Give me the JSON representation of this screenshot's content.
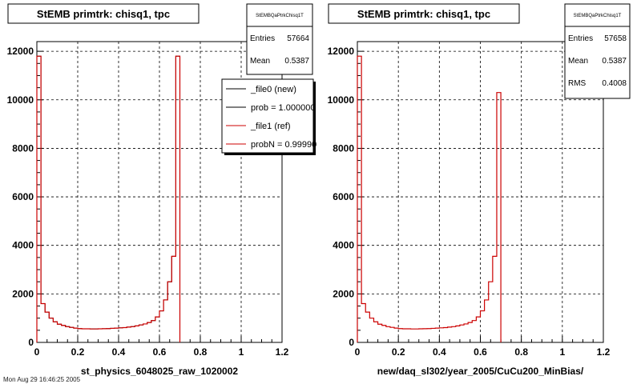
{
  "chart_data": [
    {
      "type": "histogram",
      "title": "StEMB primtrk: chisq1, tpc",
      "xlabel": "st_physics_6048025_raw_1020002",
      "xlim": [
        0,
        1.2
      ],
      "ylim": [
        0,
        12400
      ],
      "x_ticks": [
        "0",
        "0.2",
        "0.4",
        "0.6",
        "0.8",
        "1",
        "1.2"
      ],
      "y_ticks": [
        "0",
        "2000",
        "4000",
        "6000",
        "8000",
        "10000",
        "12000"
      ],
      "grid": true,
      "bin_width": 0.02,
      "series": [
        {
          "name": "_file0 (new)",
          "color": "#000000",
          "values": [
            11800,
            1600,
            1250,
            1000,
            850,
            750,
            700,
            650,
            620,
            590,
            570,
            560,
            560,
            555,
            555,
            560,
            565,
            570,
            580,
            590,
            600,
            610,
            630,
            650,
            680,
            720,
            760,
            820,
            900,
            1050,
            1300,
            1750,
            2500,
            3550,
            11800
          ]
        },
        {
          "name": "_file1 (ref)",
          "color": "#cc0000",
          "values": [
            11800,
            1600,
            1250,
            1000,
            850,
            750,
            700,
            650,
            620,
            590,
            570,
            560,
            560,
            555,
            555,
            560,
            565,
            570,
            580,
            590,
            600,
            610,
            630,
            650,
            680,
            720,
            760,
            820,
            900,
            1050,
            1300,
            1750,
            2500,
            3550,
            11800
          ]
        }
      ],
      "stats": {
        "header": "StEMBQaPtrkChisq1T",
        "entries_label": "Entries",
        "entries": "57664",
        "mean_label": "Mean",
        "mean": "0.5387"
      },
      "legend": [
        "_file0 (new)",
        "prob = 1.000000",
        "_file1 (ref)",
        "probN = 0.99990"
      ]
    },
    {
      "type": "histogram",
      "title": "StEMB primtrk: chisq1, tpc",
      "xlabel": "new/daq_sl302/year_2005/CuCu200_MinBias/",
      "xlim": [
        0,
        1.2
      ],
      "ylim": [
        0,
        12400
      ],
      "x_ticks": [
        "0",
        "0.2",
        "0.4",
        "0.6",
        "0.8",
        "1",
        "1.2"
      ],
      "y_ticks": [
        "0",
        "2000",
        "4000",
        "6000",
        "8000",
        "10000",
        "12000"
      ],
      "grid": true,
      "bin_width": 0.02,
      "series": [
        {
          "name": "",
          "color": "#cc0000",
          "values": [
            11800,
            1600,
            1250,
            1000,
            850,
            750,
            700,
            650,
            620,
            590,
            570,
            560,
            560,
            555,
            555,
            560,
            565,
            570,
            580,
            590,
            600,
            610,
            630,
            650,
            680,
            720,
            760,
            820,
            900,
            1050,
            1300,
            1750,
            2500,
            3550,
            10300
          ]
        }
      ],
      "stats": {
        "header": "StEMBQaPtrkChisq1T",
        "entries_label": "Entries",
        "entries": "57658",
        "mean_label": "Mean",
        "mean": "0.5387",
        "rms_label": "RMS",
        "rms": "0.4008"
      }
    }
  ],
  "footer": "Mon Aug 29 16:46:25 2005"
}
